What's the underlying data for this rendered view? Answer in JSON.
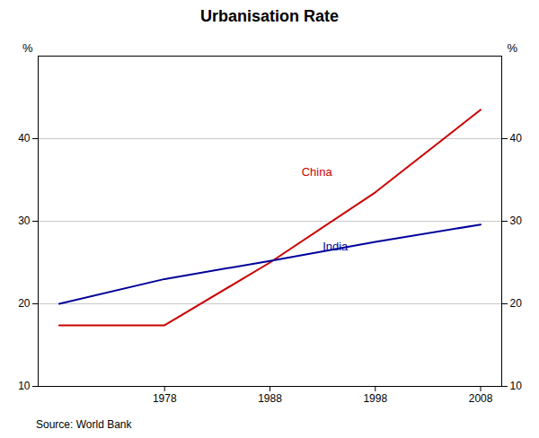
{
  "chart_data": {
    "type": "line",
    "title": "Urbanisation Rate",
    "x": [
      1968,
      1978,
      1988,
      1998,
      2008
    ],
    "series": [
      {
        "name": "China",
        "color": "#cc0000",
        "values": [
          17.4,
          17.4,
          25.0,
          33.5,
          43.5
        ]
      },
      {
        "name": "India",
        "color": "#000099",
        "values": [
          20.0,
          23.0,
          25.2,
          27.5,
          29.6
        ]
      }
    ],
    "ylabel": "%",
    "xlim": [
      1966,
      2010
    ],
    "xticks": [
      1978,
      1988,
      1998,
      2008
    ],
    "ylim": [
      10,
      50
    ],
    "yticks": [
      10,
      20,
      30,
      40
    ],
    "grid": true,
    "annotations": [
      {
        "text": "China",
        "x": 1991,
        "y": 35.5,
        "color": "#cc0000"
      },
      {
        "text": "India",
        "x": 1993,
        "y": 26.5,
        "color": "#000099"
      }
    ],
    "caption": "Source: World Bank"
  }
}
